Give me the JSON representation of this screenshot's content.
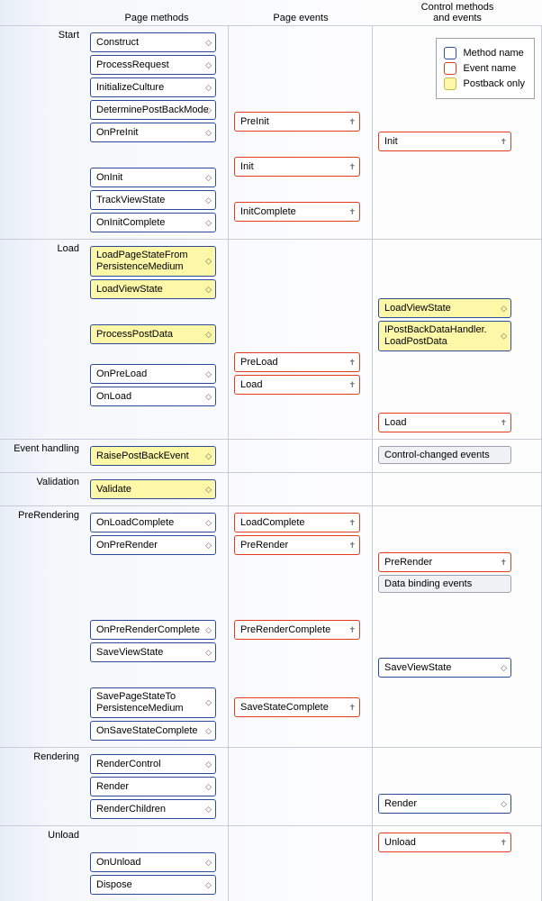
{
  "headers": {
    "col1": "Page methods",
    "col2": "Page events",
    "col3": "Control methods\nand events"
  },
  "legend": {
    "method": "Method name",
    "event": "Event name",
    "postback": "Postback only"
  },
  "sections": [
    {
      "label": "Start",
      "cols": {
        "pm": [
          {
            "t": "Construct",
            "k": "method"
          },
          {
            "t": "ProcessRequest",
            "k": "method"
          },
          {
            "t": "InitializeCulture",
            "k": "method"
          },
          {
            "t": "DeterminePostBackMode",
            "k": "method"
          },
          {
            "t": "OnPreInit",
            "k": "method"
          },
          {
            "sp": 1
          },
          {
            "t": "OnInit",
            "k": "method"
          },
          {
            "t": "TrackViewState",
            "k": "method"
          },
          {
            "t": "OnInitComplete",
            "k": "method"
          }
        ],
        "pe": [
          {
            "sp": 4
          },
          {
            "t": "PreInit",
            "k": "event"
          },
          {
            "sp": 1
          },
          {
            "t": "Init",
            "k": "event"
          },
          {
            "sp": 1
          },
          {
            "t": "InitComplete",
            "k": "event"
          }
        ],
        "cm": [
          {
            "sp": 5
          },
          {
            "t": "Init",
            "k": "event"
          }
        ]
      }
    },
    {
      "label": "Load",
      "cols": {
        "pm": [
          {
            "t": "LoadPageStateFrom\nPersistenceMedium",
            "k": "method",
            "pb": true,
            "ml": true
          },
          {
            "t": "LoadViewState",
            "k": "method",
            "pb": true
          },
          {
            "sp": 1
          },
          {
            "t": "ProcessPostData",
            "k": "method",
            "pb": true
          },
          {
            "spPx": 16
          },
          {
            "t": "OnPreLoad",
            "k": "method"
          },
          {
            "t": "OnLoad",
            "k": "method"
          },
          {
            "sp": 1
          }
        ],
        "pe": [
          {
            "sp": 4
          },
          {
            "spPx": 30
          },
          {
            "t": "PreLoad",
            "k": "event"
          },
          {
            "t": "Load",
            "k": "event"
          }
        ],
        "cm": [
          {
            "sp": 2
          },
          {
            "spPx": 14
          },
          {
            "t": "LoadViewState",
            "k": "method",
            "pb": true
          },
          {
            "t": "IPostBackDataHandler.\nLoadPostData",
            "k": "method",
            "pb": true,
            "ml": true
          },
          {
            "sp": 2
          },
          {
            "spPx": 18
          },
          {
            "t": "Load",
            "k": "event"
          }
        ]
      }
    },
    {
      "label": "Event handling",
      "cols": {
        "pm": [
          {
            "t": "RaisePostBackEvent",
            "k": "method",
            "pb": true
          }
        ],
        "pe": [],
        "cm": [
          {
            "t": "Control-changed events",
            "k": "plain",
            "pb": true
          }
        ]
      }
    },
    {
      "label": "Validation",
      "cols": {
        "pm": [
          {
            "t": "Validate",
            "k": "method",
            "pb": true
          }
        ],
        "pe": [],
        "cm": []
      }
    },
    {
      "label": "PreRendering",
      "cols": {
        "pm": [
          {
            "t": "OnLoadComplete",
            "k": "method"
          },
          {
            "t": "OnPreRender",
            "k": "method"
          },
          {
            "sp": 3
          },
          {
            "t": "OnPreRenderComplete",
            "k": "method"
          },
          {
            "t": "SaveViewState",
            "k": "method"
          },
          {
            "sp": 1
          },
          {
            "t": "SavePageStateTo\nPersistenceMedium",
            "k": "method",
            "ml": true
          },
          {
            "t": "OnSaveStateComplete",
            "k": "method"
          }
        ],
        "pe": [
          {
            "t": "LoadComplete",
            "k": "event"
          },
          {
            "t": "PreRender",
            "k": "event"
          },
          {
            "sp": 3
          },
          {
            "t": "PreRenderComplete",
            "k": "event"
          },
          {
            "sp": 2
          },
          {
            "spPx": 14
          },
          {
            "t": "SaveStateComplete",
            "k": "event"
          }
        ],
        "cm": [
          {
            "sp": 2
          },
          {
            "t": "PreRender",
            "k": "event"
          },
          {
            "t": "Data binding events",
            "k": "plain"
          },
          {
            "sp": 3
          },
          {
            "t": "SaveViewState",
            "k": "method"
          }
        ]
      }
    },
    {
      "label": "Rendering",
      "cols": {
        "pm": [
          {
            "t": "RenderControl",
            "k": "method"
          },
          {
            "t": "Render",
            "k": "method"
          },
          {
            "t": "RenderChildren",
            "k": "method"
          }
        ],
        "pe": [],
        "cm": [
          {
            "sp": 2
          },
          {
            "t": "Render",
            "k": "method"
          }
        ]
      }
    },
    {
      "label": "Unload",
      "cols": {
        "pm": [
          {
            "sp": 1
          },
          {
            "t": "OnUnload",
            "k": "method"
          },
          {
            "t": "Dispose",
            "k": "method"
          }
        ],
        "pe": [],
        "cm": [
          {
            "t": "Unload",
            "k": "event"
          }
        ]
      }
    }
  ]
}
